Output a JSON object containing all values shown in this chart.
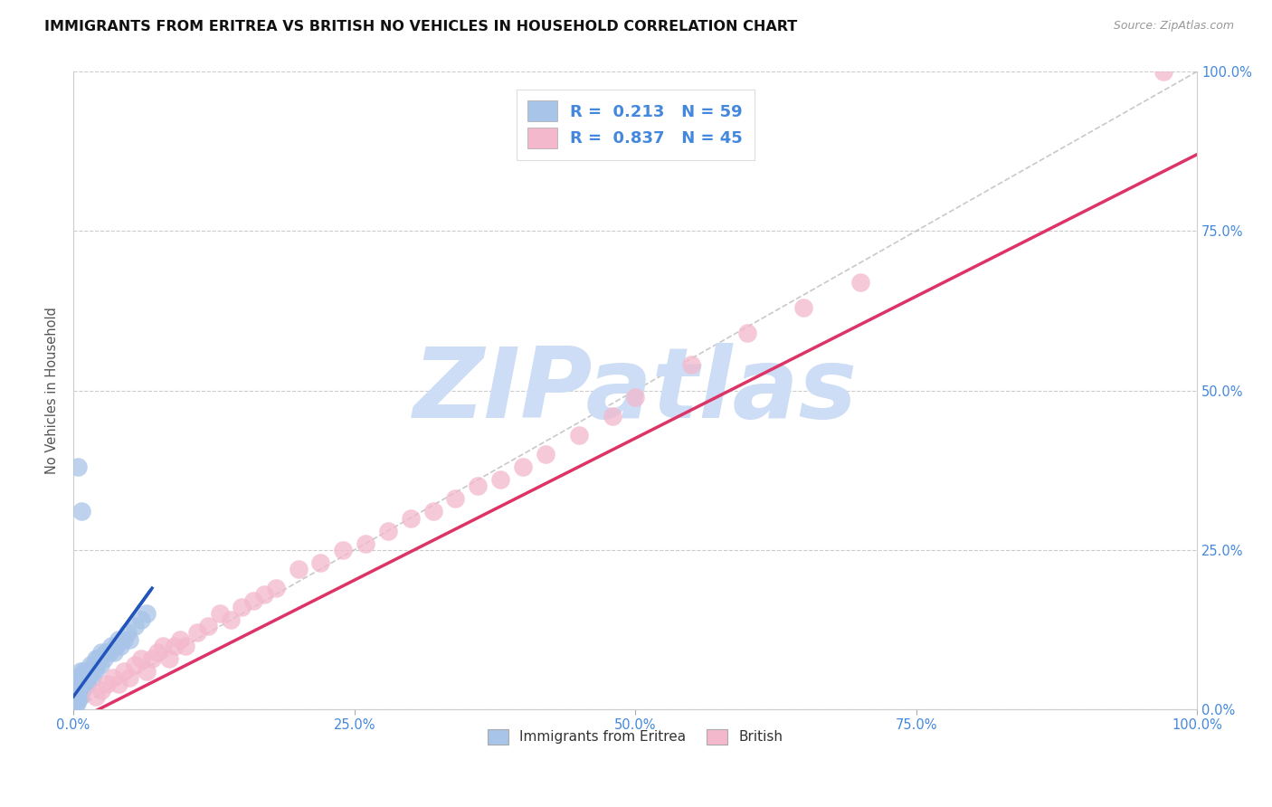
{
  "title": "IMMIGRANTS FROM ERITREA VS BRITISH NO VEHICLES IN HOUSEHOLD CORRELATION CHART",
  "source_text": "Source: ZipAtlas.com",
  "ylabel": "No Vehicles in Household",
  "series1_label": "Immigrants from Eritrea",
  "series2_label": "British",
  "R1": 0.213,
  "N1": 59,
  "R2": 0.837,
  "N2": 45,
  "color1": "#a8c4e8",
  "color2": "#f4b8cc",
  "trendline1_color": "#2255bb",
  "trendline2_color": "#dd3366",
  "refline_color": "#bbbbbb",
  "watermark_color": "#ccddf5",
  "xlim": [
    0.0,
    1.0
  ],
  "ylim": [
    0.0,
    1.0
  ],
  "xticks": [
    0.0,
    0.25,
    0.5,
    0.75,
    1.0
  ],
  "yticks": [
    0.0,
    0.25,
    0.5,
    0.75,
    1.0
  ],
  "xticklabels": [
    "0.0%",
    "25.0%",
    "50.0%",
    "75.0%",
    "100.0%"
  ],
  "yticklabels": [
    "0.0%",
    "25.0%",
    "50.0%",
    "75.0%",
    "100.0%"
  ],
  "background_color": "#ffffff",
  "grid_color": "#cccccc",
  "axis_label_color": "#4488dd",
  "title_fontsize": 11.5,
  "label_fontsize": 10.5,
  "series1_x": [
    0.001,
    0.001,
    0.001,
    0.002,
    0.002,
    0.002,
    0.002,
    0.003,
    0.003,
    0.003,
    0.003,
    0.004,
    0.004,
    0.004,
    0.005,
    0.005,
    0.005,
    0.006,
    0.006,
    0.006,
    0.007,
    0.007,
    0.008,
    0.008,
    0.009,
    0.009,
    0.01,
    0.01,
    0.011,
    0.012,
    0.012,
    0.013,
    0.014,
    0.015,
    0.016,
    0.017,
    0.018,
    0.019,
    0.02,
    0.021,
    0.022,
    0.024,
    0.025,
    0.027,
    0.029,
    0.032,
    0.034,
    0.036,
    0.038,
    0.04,
    0.042,
    0.045,
    0.048,
    0.05,
    0.055,
    0.06,
    0.065,
    0.007,
    0.004
  ],
  "series1_y": [
    0.01,
    0.02,
    0.03,
    0.01,
    0.02,
    0.03,
    0.04,
    0.01,
    0.02,
    0.03,
    0.05,
    0.02,
    0.03,
    0.04,
    0.02,
    0.03,
    0.05,
    0.02,
    0.03,
    0.06,
    0.03,
    0.04,
    0.03,
    0.05,
    0.04,
    0.06,
    0.04,
    0.05,
    0.05,
    0.04,
    0.06,
    0.05,
    0.06,
    0.07,
    0.06,
    0.05,
    0.07,
    0.06,
    0.08,
    0.07,
    0.08,
    0.07,
    0.09,
    0.08,
    0.09,
    0.09,
    0.1,
    0.09,
    0.1,
    0.11,
    0.1,
    0.11,
    0.12,
    0.11,
    0.13,
    0.14,
    0.15,
    0.31,
    0.38
  ],
  "series2_x": [
    0.02,
    0.025,
    0.03,
    0.035,
    0.04,
    0.045,
    0.05,
    0.055,
    0.06,
    0.065,
    0.07,
    0.075,
    0.08,
    0.085,
    0.09,
    0.095,
    0.1,
    0.11,
    0.12,
    0.13,
    0.14,
    0.15,
    0.16,
    0.17,
    0.18,
    0.2,
    0.22,
    0.24,
    0.26,
    0.28,
    0.3,
    0.32,
    0.34,
    0.36,
    0.38,
    0.4,
    0.42,
    0.45,
    0.48,
    0.5,
    0.55,
    0.6,
    0.65,
    0.7,
    0.97
  ],
  "series2_y": [
    0.02,
    0.03,
    0.04,
    0.05,
    0.04,
    0.06,
    0.05,
    0.07,
    0.08,
    0.06,
    0.08,
    0.09,
    0.1,
    0.08,
    0.1,
    0.11,
    0.1,
    0.12,
    0.13,
    0.15,
    0.14,
    0.16,
    0.17,
    0.18,
    0.19,
    0.22,
    0.23,
    0.25,
    0.26,
    0.28,
    0.3,
    0.31,
    0.33,
    0.35,
    0.36,
    0.38,
    0.4,
    0.43,
    0.46,
    0.49,
    0.54,
    0.59,
    0.63,
    0.67,
    1.0
  ],
  "trend1_x0": 0.0,
  "trend1_y0": 0.02,
  "trend1_x1": 0.07,
  "trend1_y1": 0.19,
  "trend2_x0": 0.0,
  "trend2_y0": -0.02,
  "trend2_x1": 1.0,
  "trend2_y1": 0.87
}
